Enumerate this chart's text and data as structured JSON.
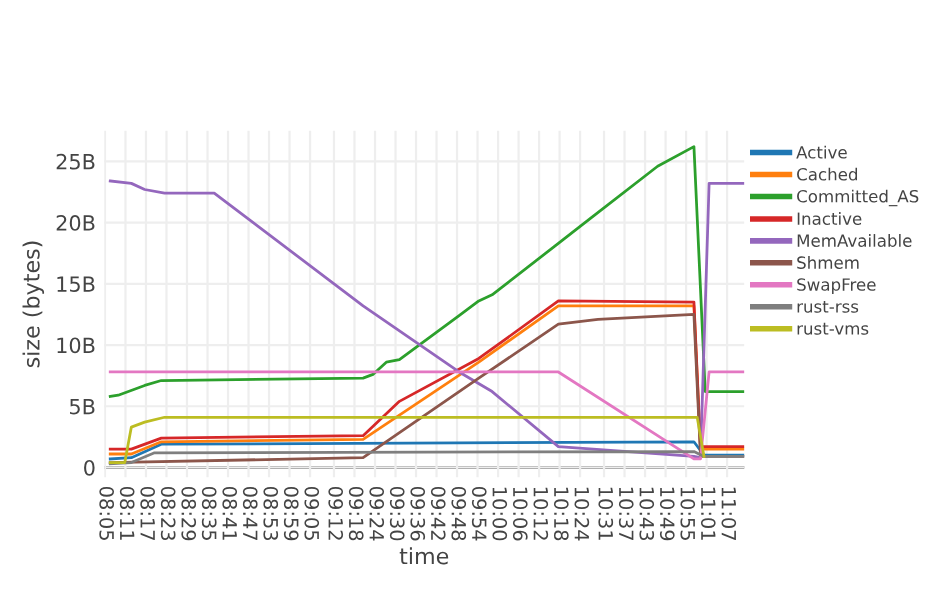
{
  "chart_data": {
    "type": "line",
    "xlabel": "time",
    "ylabel": "size (bytes)",
    "xlim": [
      8.08,
      11.2
    ],
    "ylim": [
      -0.8,
      27.5
    ],
    "xticks": [
      {
        "value": 8.0833,
        "label": "08:05"
      },
      {
        "value": 8.1833,
        "label": "08:11"
      },
      {
        "value": 8.2833,
        "label": "08:17"
      },
      {
        "value": 8.3833,
        "label": "08:23"
      },
      {
        "value": 8.4833,
        "label": "08:29"
      },
      {
        "value": 8.5833,
        "label": "08:35"
      },
      {
        "value": 8.6833,
        "label": "08:41"
      },
      {
        "value": 8.7833,
        "label": "08:47"
      },
      {
        "value": 8.8833,
        "label": "08:53"
      },
      {
        "value": 8.9833,
        "label": "08:59"
      },
      {
        "value": 9.0833,
        "label": "09:05"
      },
      {
        "value": 9.2,
        "label": "09:12"
      },
      {
        "value": 9.3,
        "label": "09:18"
      },
      {
        "value": 9.4,
        "label": "09:24"
      },
      {
        "value": 9.5,
        "label": "09:30"
      },
      {
        "value": 9.6,
        "label": "09:36"
      },
      {
        "value": 9.7,
        "label": "09:42"
      },
      {
        "value": 9.8,
        "label": "09:48"
      },
      {
        "value": 9.9,
        "label": "09:54"
      },
      {
        "value": 10.0,
        "label": "10:00"
      },
      {
        "value": 10.1,
        "label": "10:06"
      },
      {
        "value": 10.2,
        "label": "10:12"
      },
      {
        "value": 10.3,
        "label": "10:18"
      },
      {
        "value": 10.4,
        "label": "10:24"
      },
      {
        "value": 10.5167,
        "label": "10:31"
      },
      {
        "value": 10.6167,
        "label": "10:37"
      },
      {
        "value": 10.7167,
        "label": "10:43"
      },
      {
        "value": 10.8167,
        "label": "10:49"
      },
      {
        "value": 10.9167,
        "label": "10:55"
      },
      {
        "value": 11.0167,
        "label": "11:01"
      },
      {
        "value": 11.1167,
        "label": "11:07"
      }
    ],
    "yticks": [
      0,
      {
        "value": 5,
        "label": "5B"
      },
      {
        "value": 10,
        "label": "10B"
      },
      {
        "value": 15,
        "label": "15B"
      },
      {
        "value": 20,
        "label": "20B"
      },
      {
        "value": 25,
        "label": "25B"
      }
    ],
    "grid": true,
    "legend": "right",
    "marker": "none",
    "line_style": "solid",
    "series": [
      {
        "name": "Active",
        "color": "#1f77b4",
        "x": [
          8.109,
          8.212,
          8.358,
          10.955,
          11.004,
          11.197
        ],
        "values": [
          0.7,
          0.8,
          1.9,
          2.1,
          1.0,
          1.0
        ]
      },
      {
        "name": "Cached",
        "color": "#ff7f0e",
        "x": [
          8.109,
          8.212,
          8.358,
          9.342,
          9.906,
          10.294,
          10.955,
          10.987,
          11.197
        ],
        "values": [
          1.1,
          1.1,
          2.1,
          2.3,
          8.6,
          13.2,
          13.2,
          1.5,
          1.5
        ]
      },
      {
        "name": "Committed_AS",
        "color": "#2ca02c",
        "x": [
          8.109,
          8.148,
          8.277,
          8.358,
          9.342,
          9.39,
          9.455,
          9.519,
          9.81,
          9.906,
          9.971,
          10.294,
          10.455,
          10.778,
          10.955,
          11.01,
          11.197
        ],
        "values": [
          5.8,
          5.9,
          6.7,
          7.1,
          7.3,
          7.6,
          8.6,
          8.8,
          12.4,
          13.6,
          14.1,
          18.3,
          20.4,
          24.6,
          26.2,
          6.2,
          6.2
        ]
      },
      {
        "name": "Inactive",
        "color": "#d62728",
        "x": [
          8.109,
          8.212,
          8.358,
          9.342,
          9.519,
          9.906,
          10.294,
          10.955,
          10.987,
          11.197
        ],
        "values": [
          1.5,
          1.5,
          2.4,
          2.6,
          5.4,
          8.9,
          13.6,
          13.5,
          1.7,
          1.7
        ]
      },
      {
        "name": "MemAvailable",
        "color": "#9467bd",
        "x": [
          8.109,
          8.212,
          8.277,
          8.374,
          8.616,
          9.342,
          9.81,
          9.971,
          10.294,
          10.955,
          10.987,
          11.029,
          11.197
        ],
        "values": [
          23.4,
          23.2,
          22.7,
          22.4,
          22.4,
          13.2,
          7.8,
          6.2,
          1.7,
          0.9,
          0.8,
          23.2,
          23.2
        ]
      },
      {
        "name": "Shmem",
        "color": "#8c564b",
        "x": [
          8.109,
          9.342,
          9.906,
          10.294,
          10.487,
          10.955,
          10.987,
          11.197
        ],
        "values": [
          0.4,
          0.8,
          7.3,
          11.7,
          12.1,
          12.5,
          0.9,
          0.9
        ]
      },
      {
        "name": "SwapFree",
        "color": "#e377c2",
        "x": [
          8.109,
          10.294,
          10.955,
          10.987,
          11.029,
          11.197
        ],
        "values": [
          7.8,
          7.8,
          0.7,
          0.7,
          7.8,
          7.8
        ]
      },
      {
        "name": "rust-rss",
        "color": "#7f7f7f",
        "x": [
          8.109,
          8.212,
          8.325,
          10.955,
          11.004,
          11.197
        ],
        "values": [
          0.3,
          0.4,
          1.2,
          1.3,
          0.9,
          0.9
        ]
      },
      {
        "name": "rust-vms",
        "color": "#bcbd22",
        "x": [
          8.109,
          8.18,
          8.212,
          8.277,
          8.374,
          10.971,
          11.004
        ],
        "values": [
          0.4,
          0.4,
          3.3,
          3.7,
          4.1,
          4.1,
          0.9
        ]
      }
    ]
  }
}
